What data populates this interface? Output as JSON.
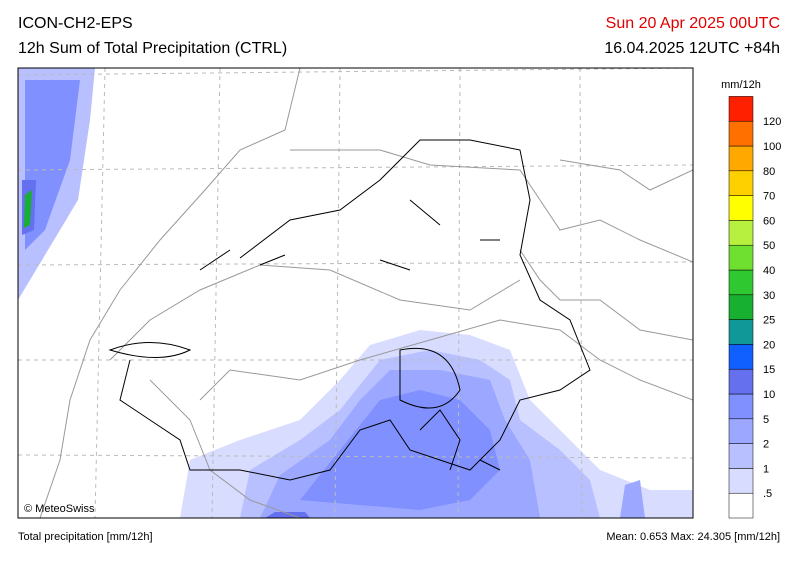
{
  "header": {
    "model": "ICON-CH2-EPS",
    "field": "12h Sum of Total Precipitation (CTRL)",
    "valid_time": "Sun 20 Apr 2025 00UTC",
    "run_time": "16.04.2025 12UTC +84h"
  },
  "legend": {
    "unit": "mm/12h",
    "labels": [
      ".5",
      "1",
      "2",
      "5",
      "10",
      "15",
      "20",
      "25",
      "30",
      "40",
      "50",
      "60",
      "70",
      "80",
      "100",
      "120"
    ],
    "colors": [
      "#ffffff",
      "#d8dcff",
      "#b8c0ff",
      "#9ca8ff",
      "#8090ff",
      "#6470ee",
      "#1060ff",
      "#109898",
      "#18b030",
      "#30c830",
      "#70e030",
      "#b8f040",
      "#ffff00",
      "#ffd000",
      "#ffa800",
      "#ff7000",
      "#ff2000"
    ]
  },
  "credit": "© MeteoSwiss",
  "footer": {
    "left": "Total precipitation [mm/12h]",
    "right": "Mean:  0.653 Max:  24.305 [mm/12h]"
  }
}
